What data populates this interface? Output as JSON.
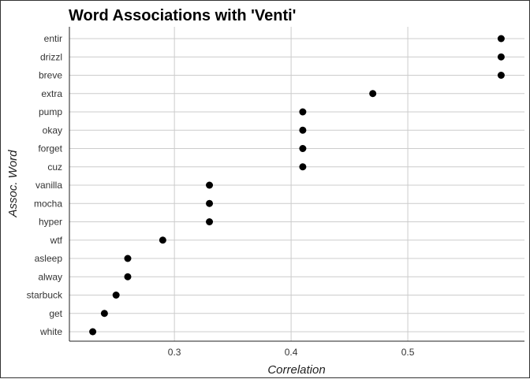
{
  "chart_data": {
    "type": "scatter",
    "title": "Word Associations with 'Venti'",
    "xlabel": "Correlation",
    "ylabel": "Assoc. Word",
    "xlim": [
      0.21,
      0.6
    ],
    "x_ticks": [
      0.3,
      0.4,
      0.5
    ],
    "x_tick_labels": [
      "0.3",
      "0.4",
      "0.5"
    ],
    "grid": true,
    "point_color": "#000000",
    "categories": [
      "entir",
      "drizzl",
      "breve",
      "extra",
      "pump",
      "okay",
      "forget",
      "cuz",
      "vanilla",
      "mocha",
      "hyper",
      "wtf",
      "asleep",
      "alway",
      "starbuck",
      "get",
      "white"
    ],
    "values": [
      0.58,
      0.58,
      0.58,
      0.47,
      0.41,
      0.41,
      0.41,
      0.41,
      0.33,
      0.33,
      0.33,
      0.29,
      0.26,
      0.26,
      0.25,
      0.24,
      0.23
    ]
  }
}
